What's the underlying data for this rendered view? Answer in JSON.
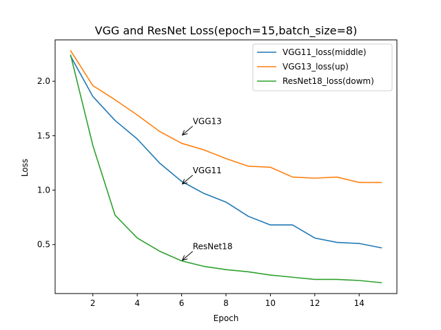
{
  "chart_data": {
    "type": "line",
    "title": "VGG and ResNet Loss(epoch=15,batch_size=8)",
    "xlabel": "Epoch",
    "ylabel": "Loss",
    "xlim": [
      0.3,
      15.7
    ],
    "ylim": [
      0.05,
      2.38
    ],
    "xticks": [
      2,
      4,
      6,
      8,
      10,
      12,
      14
    ],
    "yticks": [
      0.5,
      1.0,
      1.5,
      2.0
    ],
    "xtick_labels": [
      "2",
      "4",
      "6",
      "8",
      "10",
      "12",
      "14"
    ],
    "ytick_labels": [
      "0.5",
      "1.0",
      "1.5",
      "2.0"
    ],
    "x": [
      1,
      2,
      3,
      4,
      5,
      6,
      7,
      8,
      9,
      10,
      11,
      12,
      13,
      14,
      15
    ],
    "legend_position": "top-right",
    "grid": false,
    "series": [
      {
        "name": "VGG11_loss(middle)",
        "color": "#1f77b4",
        "values": [
          2.23,
          1.86,
          1.64,
          1.47,
          1.25,
          1.08,
          0.97,
          0.89,
          0.76,
          0.68,
          0.68,
          0.56,
          0.52,
          0.51,
          0.47
        ]
      },
      {
        "name": "VGG13_loss(up)",
        "color": "#ff7f0e",
        "values": [
          2.28,
          1.96,
          1.83,
          1.69,
          1.54,
          1.43,
          1.37,
          1.29,
          1.22,
          1.21,
          1.12,
          1.11,
          1.12,
          1.07,
          1.07
        ]
      },
      {
        "name": "ResNet18_loss(dowm)",
        "color": "#2ca02c",
        "values": [
          2.24,
          1.41,
          0.77,
          0.56,
          0.44,
          0.35,
          0.3,
          0.27,
          0.25,
          0.22,
          0.2,
          0.18,
          0.18,
          0.17,
          0.15
        ]
      }
    ],
    "annotations": [
      {
        "text": "VGG13",
        "x": 6.5,
        "y": 1.6,
        "arrow_x": 6.0,
        "arrow_y": 1.5
      },
      {
        "text": "VGG11",
        "x": 6.5,
        "y": 1.15,
        "arrow_x": 6.0,
        "arrow_y": 1.05
      },
      {
        "text": "ResNet18",
        "x": 6.5,
        "y": 0.45,
        "arrow_x": 6.0,
        "arrow_y": 0.35
      }
    ]
  }
}
